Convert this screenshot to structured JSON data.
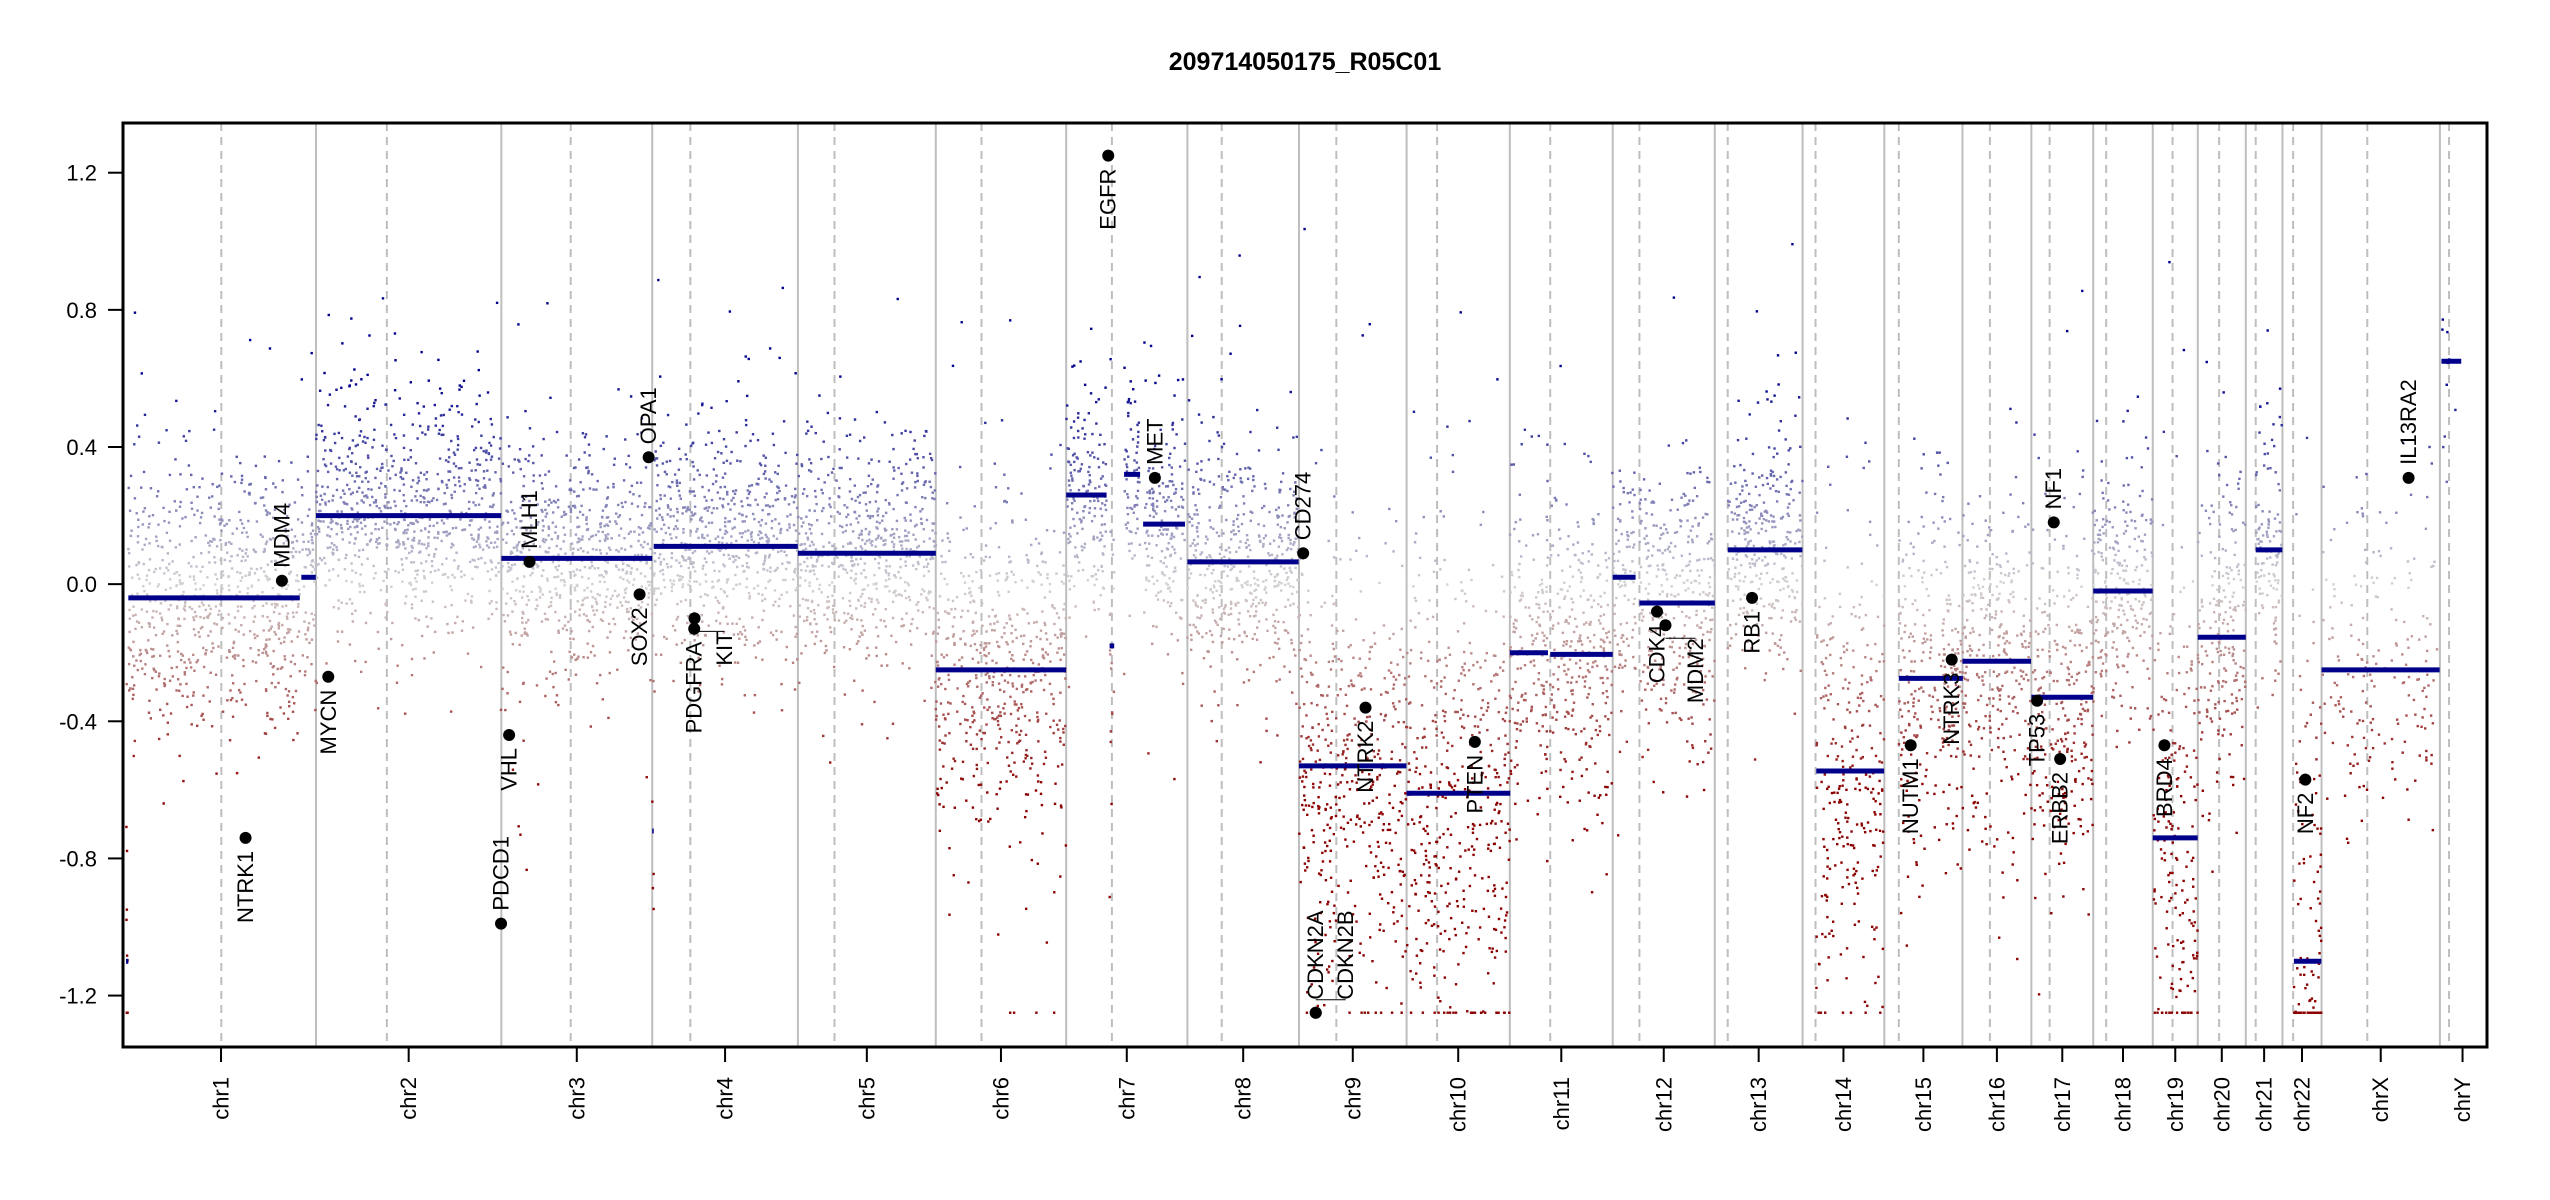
{
  "chart_data": {
    "type": "scatter",
    "title": "209714050175_R05C01",
    "xlabel": "",
    "ylabel": "",
    "ylim": [
      -1.35,
      1.345
    ],
    "xlim_mb": [
      -4,
      3098
    ],
    "yticks": [
      -1.2,
      -0.8,
      -0.4,
      0.0,
      0.4,
      0.8,
      1.2
    ],
    "ytick_labels": [
      "-1.2",
      "-0.8",
      "-0.4",
      "0.0",
      "0.4",
      "0.8",
      "1.2"
    ],
    "point_clip": 1.25,
    "colors": {
      "gain": "#00008B",
      "neutral": "#D3D3D3",
      "loss": "#8B0000",
      "segment": "#00008B",
      "gene": "#000000",
      "chrom_line": "#BEBEBE"
    },
    "chromosomes": [
      {
        "name": "chr1",
        "length_mb": 249.25,
        "centromere_mb": 125
      },
      {
        "name": "chr2",
        "length_mb": 243.2,
        "centromere_mb": 93
      },
      {
        "name": "chr3",
        "length_mb": 198.0,
        "centromere_mb": 91
      },
      {
        "name": "chr4",
        "length_mb": 191.15,
        "centromere_mb": 50
      },
      {
        "name": "chr5",
        "length_mb": 180.9,
        "centromere_mb": 48
      },
      {
        "name": "chr6",
        "length_mb": 171.1,
        "centromere_mb": 60
      },
      {
        "name": "chr7",
        "length_mb": 159.1,
        "centromere_mb": 60
      },
      {
        "name": "chr8",
        "length_mb": 146.4,
        "centromere_mb": 45
      },
      {
        "name": "chr9",
        "length_mb": 141.2,
        "centromere_mb": 49
      },
      {
        "name": "chr10",
        "length_mb": 135.5,
        "centromere_mb": 40
      },
      {
        "name": "chr11",
        "length_mb": 135.0,
        "centromere_mb": 53
      },
      {
        "name": "chr12",
        "length_mb": 133.9,
        "centromere_mb": 35
      },
      {
        "name": "chr13",
        "length_mb": 115.2,
        "centromere_mb": 17
      },
      {
        "name": "chr14",
        "length_mb": 107.3,
        "centromere_mb": 17
      },
      {
        "name": "chr15",
        "length_mb": 102.5,
        "centromere_mb": 19
      },
      {
        "name": "chr16",
        "length_mb": 90.4,
        "centromere_mb": 36
      },
      {
        "name": "chr17",
        "length_mb": 81.2,
        "centromere_mb": 24
      },
      {
        "name": "chr18",
        "length_mb": 78.1,
        "centromere_mb": 17
      },
      {
        "name": "chr19",
        "length_mb": 59.1,
        "centromere_mb": 26
      },
      {
        "name": "chr20",
        "length_mb": 63.0,
        "centromere_mb": 28
      },
      {
        "name": "chr21",
        "length_mb": 48.1,
        "centromere_mb": 13
      },
      {
        "name": "chr22",
        "length_mb": 51.3,
        "centromere_mb": 14
      },
      {
        "name": "chrX",
        "length_mb": 155.3,
        "centromere_mb": 60
      },
      {
        "name": "chrY",
        "length_mb": 59.4,
        "centromere_mb": 12
      }
    ],
    "segments": [
      {
        "chr": "chr1",
        "start": 0,
        "end": 3,
        "value": -1.1
      },
      {
        "chr": "chr1",
        "start": 3,
        "end": 228,
        "value": -0.04
      },
      {
        "chr": "chr1",
        "start": 230,
        "end": 249,
        "value": 0.02
      },
      {
        "chr": "chr2",
        "start": 0,
        "end": 243,
        "value": 0.2
      },
      {
        "chr": "chr3",
        "start": 0,
        "end": 198,
        "value": 0.075
      },
      {
        "chr": "chr4",
        "start": 0,
        "end": 2,
        "value": -0.72
      },
      {
        "chr": "chr4",
        "start": 2,
        "end": 191,
        "value": 0.11
      },
      {
        "chr": "chr5",
        "start": 0,
        "end": 181,
        "value": 0.09
      },
      {
        "chr": "chr6",
        "start": 0,
        "end": 171,
        "value": -0.25
      },
      {
        "chr": "chr7",
        "start": 0,
        "end": 53,
        "value": 0.26
      },
      {
        "chr": "chr7",
        "start": 57,
        "end": 63,
        "value": -0.18
      },
      {
        "chr": "chr7",
        "start": 76,
        "end": 97,
        "value": 0.32
      },
      {
        "chr": "chr7",
        "start": 101,
        "end": 156,
        "value": 0.175
      },
      {
        "chr": "chr8",
        "start": 0,
        "end": 146,
        "value": 0.065
      },
      {
        "chr": "chr9",
        "start": 0,
        "end": 141,
        "value": -0.53
      },
      {
        "chr": "chr10",
        "start": 0,
        "end": 136,
        "value": -0.61
      },
      {
        "chr": "chr11",
        "start": 0,
        "end": 50,
        "value": -0.2
      },
      {
        "chr": "chr11",
        "start": 53,
        "end": 135,
        "value": -0.205
      },
      {
        "chr": "chr12",
        "start": 0,
        "end": 30,
        "value": 0.02
      },
      {
        "chr": "chr12",
        "start": 35,
        "end": 134,
        "value": -0.055
      },
      {
        "chr": "chr13",
        "start": 17,
        "end": 115,
        "value": 0.1
      },
      {
        "chr": "chr14",
        "start": 18,
        "end": 107,
        "value": -0.545
      },
      {
        "chr": "chr15",
        "start": 19,
        "end": 103,
        "value": -0.275
      },
      {
        "chr": "chr16",
        "start": 0,
        "end": 90,
        "value": -0.225
      },
      {
        "chr": "chr17",
        "start": 0,
        "end": 81,
        "value": -0.33
      },
      {
        "chr": "chr18",
        "start": 0,
        "end": 78,
        "value": -0.02
      },
      {
        "chr": "chr19",
        "start": 0,
        "end": 59,
        "value": -0.74
      },
      {
        "chr": "chr20",
        "start": 0,
        "end": 63,
        "value": -0.155
      },
      {
        "chr": "chr21",
        "start": 13,
        "end": 48,
        "value": 0.1
      },
      {
        "chr": "chr22",
        "start": 15,
        "end": 51,
        "value": -1.1
      },
      {
        "chr": "chrX",
        "start": 0,
        "end": 155,
        "value": -0.25
      },
      {
        "chr": "chrY",
        "start": 2,
        "end": 28,
        "value": 0.65
      }
    ],
    "genes": [
      {
        "name": "NTRK1",
        "chr": "chr1",
        "pos": 156.8,
        "value": -0.74
      },
      {
        "name": "MDM4",
        "chr": "chr1",
        "pos": 204.5,
        "value": 0.01
      },
      {
        "name": "MYCN",
        "chr": "chr2",
        "pos": 16.1,
        "value": -0.27
      },
      {
        "name": "PDCD1",
        "chr": "chr2",
        "pos": 242.8,
        "value": -0.99
      },
      {
        "name": "VHL",
        "chr": "chr3",
        "pos": 10.2,
        "value": -0.44
      },
      {
        "name": "MLH1",
        "chr": "chr3",
        "pos": 37.0,
        "value": 0.065
      },
      {
        "name": "SOX2",
        "chr": "chr3",
        "pos": 181.4,
        "value": -0.03
      },
      {
        "name": "OPA1",
        "chr": "chr3",
        "pos": 193.3,
        "value": 0.37
      },
      {
        "name": "PDGFRA",
        "chr": "chr4",
        "pos": 55.1,
        "value": -0.13
      },
      {
        "name": "KIT",
        "chr": "chr4",
        "pos": 55.5,
        "value": -0.1
      },
      {
        "name": "EGFR",
        "chr": "chr7",
        "pos": 55.2,
        "value": 1.25
      },
      {
        "name": "MET",
        "chr": "chr7",
        "pos": 116.4,
        "value": 0.31
      },
      {
        "name": "CD274",
        "chr": "chr9",
        "pos": 5.5,
        "value": 0.09
      },
      {
        "name": "CDKN2A",
        "chr": "chr9",
        "pos": 21.97,
        "value": -1.25
      },
      {
        "name": "CDKN2B",
        "chr": "chr9",
        "pos": 22.0,
        "value": -1.25
      },
      {
        "name": "NTRK2",
        "chr": "chr9",
        "pos": 87.3,
        "value": -0.36
      },
      {
        "name": "PTEN",
        "chr": "chr10",
        "pos": 89.6,
        "value": -0.46
      },
      {
        "name": "CDK4",
        "chr": "chr12",
        "pos": 58.1,
        "value": -0.08
      },
      {
        "name": "MDM2",
        "chr": "chr12",
        "pos": 69.2,
        "value": -0.12
      },
      {
        "name": "RB1",
        "chr": "chr13",
        "pos": 48.9,
        "value": -0.04
      },
      {
        "name": "NUTM1",
        "chr": "chr15",
        "pos": 34.6,
        "value": -0.47
      },
      {
        "name": "NTRK3",
        "chr": "chr15",
        "pos": 88.4,
        "value": -0.22
      },
      {
        "name": "TP53",
        "chr": "chr17",
        "pos": 7.6,
        "value": -0.34
      },
      {
        "name": "NF1",
        "chr": "chr17",
        "pos": 29.4,
        "value": 0.18
      },
      {
        "name": "ERBB2",
        "chr": "chr17",
        "pos": 37.8,
        "value": -0.51
      },
      {
        "name": "BRD4",
        "chr": "chr19",
        "pos": 15.3,
        "value": -0.47
      },
      {
        "name": "NF2",
        "chr": "chr22",
        "pos": 30.0,
        "value": -0.57
      },
      {
        "name": "IL13RA2",
        "chr": "chrX",
        "pos": 114.2,
        "value": 0.31
      }
    ]
  }
}
